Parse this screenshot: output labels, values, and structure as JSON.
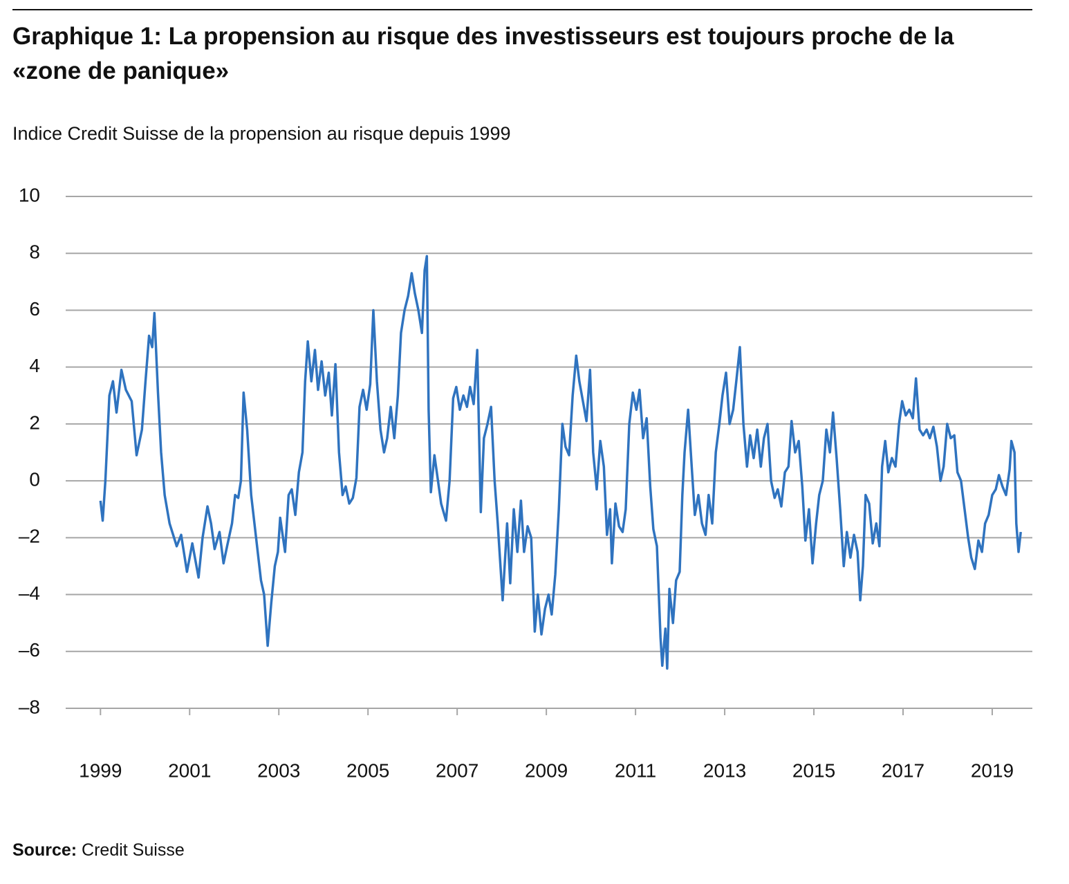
{
  "chart_data": {
    "type": "line",
    "title": "Graphique 1: La propension au risque des investisseurs est toujours proche de la «zone de panique»",
    "subtitle": "Indice Credit Suisse de la propension au risque depuis 1999",
    "source_label": "Source:",
    "source": "Credit Suisse",
    "xlim": [
      1998.22,
      2019.9
    ],
    "xticks": [
      1999,
      2001,
      2003,
      2005,
      2007,
      2009,
      2011,
      2013,
      2015,
      2017,
      2019
    ],
    "ylim": [
      -8,
      10
    ],
    "yticks": [
      {
        "value": -8,
        "label": "–8"
      },
      {
        "value": -6,
        "label": "–6"
      },
      {
        "value": -4,
        "label": "–4"
      },
      {
        "value": -2,
        "label": "–2"
      },
      0,
      2,
      4,
      6,
      8,
      10
    ],
    "grid": true,
    "x": [
      1999.0,
      1999.05,
      1999.11,
      1999.2,
      1999.28,
      1999.36,
      1999.47,
      1999.57,
      1999.7,
      1999.81,
      1999.93,
      2000.01,
      2000.09,
      2000.16,
      2000.21,
      2000.29,
      2000.36,
      2000.44,
      2000.55,
      2000.71,
      2000.81,
      2000.94,
      2001.06,
      2001.2,
      2001.29,
      2001.4,
      2001.48,
      2001.56,
      2001.67,
      2001.76,
      2001.84,
      2001.95,
      2002.02,
      2002.09,
      2002.15,
      2002.21,
      2002.29,
      2002.38,
      2002.49,
      2002.6,
      2002.67,
      2002.75,
      2002.83,
      2002.91,
      2002.98,
      2003.03,
      2003.14,
      2003.22,
      2003.29,
      2003.37,
      2003.45,
      2003.53,
      2003.59,
      2003.65,
      2003.73,
      2003.81,
      2003.88,
      2003.96,
      2004.04,
      2004.12,
      2004.19,
      2004.27,
      2004.35,
      2004.43,
      2004.5,
      2004.58,
      2004.66,
      2004.74,
      2004.81,
      2004.89,
      2004.97,
      2005.05,
      2005.12,
      2005.2,
      2005.28,
      2005.36,
      2005.43,
      2005.51,
      2005.59,
      2005.67,
      2005.74,
      2005.82,
      2005.9,
      2005.98,
      2006.05,
      2006.13,
      2006.21,
      2006.27,
      2006.32,
      2006.36,
      2006.41,
      2006.49,
      2006.57,
      2006.64,
      2006.75,
      2006.83,
      2006.91,
      2006.98,
      2007.06,
      2007.14,
      2007.22,
      2007.29,
      2007.37,
      2007.45,
      2007.53,
      2007.6,
      2007.68,
      2007.76,
      2007.84,
      2007.91,
      2008.02,
      2008.12,
      2008.19,
      2008.27,
      2008.35,
      2008.43,
      2008.5,
      2008.58,
      2008.66,
      2008.74,
      2008.81,
      2008.89,
      2008.97,
      2009.05,
      2009.12,
      2009.2,
      2009.28,
      2009.36,
      2009.43,
      2009.51,
      2009.59,
      2009.67,
      2009.74,
      2009.82,
      2009.9,
      2009.98,
      2010.05,
      2010.13,
      2010.21,
      2010.29,
      2010.36,
      2010.43,
      2010.47,
      2010.55,
      2010.63,
      2010.71,
      2010.78,
      2010.86,
      2010.94,
      2011.02,
      2011.09,
      2011.17,
      2011.25,
      2011.33,
      2011.4,
      2011.48,
      2011.56,
      2011.6,
      2011.67,
      2011.71,
      2011.76,
      2011.84,
      2011.91,
      2011.99,
      2012.05,
      2012.1,
      2012.18,
      2012.26,
      2012.33,
      2012.41,
      2012.49,
      2012.57,
      2012.64,
      2012.72,
      2012.8,
      2012.88,
      2012.95,
      2013.03,
      2013.11,
      2013.19,
      2013.26,
      2013.34,
      2013.42,
      2013.5,
      2013.57,
      2013.65,
      2013.73,
      2013.81,
      2013.88,
      2013.96,
      2014.04,
      2014.12,
      2014.19,
      2014.27,
      2014.35,
      2014.43,
      2014.5,
      2014.58,
      2014.66,
      2014.74,
      2014.81,
      2014.89,
      2014.97,
      2015.05,
      2015.12,
      2015.2,
      2015.28,
      2015.36,
      2015.43,
      2015.51,
      2015.59,
      2015.67,
      2015.74,
      2015.82,
      2015.9,
      2015.98,
      2016.04,
      2016.1,
      2016.16,
      2016.24,
      2016.32,
      2016.4,
      2016.47,
      2016.53,
      2016.6,
      2016.67,
      2016.75,
      2016.83,
      2016.91,
      2016.98,
      2017.06,
      2017.14,
      2017.22,
      2017.29,
      2017.37,
      2017.45,
      2017.53,
      2017.6,
      2017.68,
      2017.76,
      2017.84,
      2017.91,
      2017.99,
      2018.07,
      2018.15,
      2018.22,
      2018.3,
      2018.38,
      2018.46,
      2018.53,
      2018.61,
      2018.69,
      2018.77,
      2018.84,
      2018.92,
      2019.0,
      2019.08,
      2019.15,
      2019.23,
      2019.31,
      2019.39,
      2019.43,
      2019.5,
      2019.54,
      2019.59,
      2019.64
    ],
    "series": [
      {
        "color": "#2f73bf",
        "values": [
          -0.7,
          -1.4,
          0,
          3.0,
          3.5,
          2.4,
          3.9,
          3.2,
          2.8,
          0.9,
          1.8,
          3.5,
          5.1,
          4.7,
          5.9,
          3.1,
          1.0,
          -0.5,
          -1.5,
          -2.3,
          -1.9,
          -3.2,
          -2.2,
          -3.4,
          -2.0,
          -0.9,
          -1.5,
          -2.4,
          -1.8,
          -2.9,
          -2.3,
          -1.5,
          -0.5,
          -0.6,
          0.0,
          3.1,
          1.8,
          -0.5,
          -2.0,
          -3.5,
          -4.0,
          -5.8,
          -4.3,
          -3.0,
          -2.5,
          -1.3,
          -2.5,
          -0.5,
          -0.3,
          -1.2,
          0.3,
          1.0,
          3.5,
          4.9,
          3.5,
          4.6,
          3.2,
          4.2,
          3.0,
          3.8,
          2.3,
          4.1,
          1.0,
          -0.5,
          -0.2,
          -0.8,
          -0.6,
          0.1,
          2.6,
          3.2,
          2.5,
          3.4,
          6.0,
          3.5,
          1.8,
          1.0,
          1.5,
          2.6,
          1.5,
          3.0,
          5.2,
          6.0,
          6.5,
          7.3,
          6.6,
          6.0,
          5.2,
          7.4,
          7.9,
          2.5,
          -0.4,
          0.9,
          0.0,
          -0.8,
          -1.4,
          0.0,
          2.9,
          3.3,
          2.5,
          3.0,
          2.6,
          3.3,
          2.7,
          4.6,
          -1.1,
          1.5,
          2.0,
          2.6,
          0.0,
          -1.5,
          -4.2,
          -1.5,
          -3.6,
          -1.0,
          -2.5,
          -0.7,
          -2.5,
          -1.6,
          -2.0,
          -5.3,
          -4.0,
          -5.4,
          -4.5,
          -4.0,
          -4.7,
          -3.3,
          -1.0,
          2.0,
          1.2,
          0.9,
          3.0,
          4.4,
          3.5,
          2.8,
          2.1,
          3.9,
          1.0,
          -0.3,
          1.4,
          0.5,
          -1.9,
          -1.0,
          -2.9,
          -0.8,
          -1.6,
          -1.8,
          -1.0,
          2.0,
          3.1,
          2.5,
          3.2,
          1.5,
          2.2,
          -0.2,
          -1.7,
          -2.3,
          -5.5,
          -6.5,
          -5.2,
          -6.6,
          -3.8,
          -5.0,
          -3.5,
          -3.2,
          -0.5,
          1.0,
          2.5,
          0.5,
          -1.2,
          -0.5,
          -1.5,
          -1.9,
          -0.5,
          -1.5,
          1.0,
          2.0,
          3.0,
          3.8,
          2.0,
          2.5,
          3.5,
          4.7,
          2.0,
          0.5,
          1.6,
          0.8,
          1.8,
          0.5,
          1.5,
          2.0,
          0.0,
          -0.6,
          -0.3,
          -0.9,
          0.3,
          0.5,
          2.1,
          1.0,
          1.4,
          -0.2,
          -2.1,
          -1.0,
          -2.9,
          -1.5,
          -0.5,
          0.0,
          1.8,
          1.0,
          2.4,
          0.8,
          -1.0,
          -3.0,
          -1.8,
          -2.7,
          -1.9,
          -2.5,
          -4.2,
          -3.0,
          -0.5,
          -0.8,
          -2.2,
          -1.5,
          -2.3,
          0.5,
          1.4,
          0.3,
          0.8,
          0.5,
          2.0,
          2.8,
          2.3,
          2.5,
          2.2,
          3.6,
          1.8,
          1.6,
          1.8,
          1.5,
          1.9,
          1.2,
          0.0,
          0.5,
          2.0,
          1.5,
          1.6,
          0.3,
          0.0,
          -1.0,
          -2.0,
          -2.7,
          -3.1,
          -2.1,
          -2.5,
          -1.5,
          -1.2,
          -0.5,
          -0.3,
          0.2,
          -0.2,
          -0.5,
          0.4,
          1.4,
          1.0,
          -1.5,
          -2.5,
          -1.8
        ]
      }
    ]
  }
}
